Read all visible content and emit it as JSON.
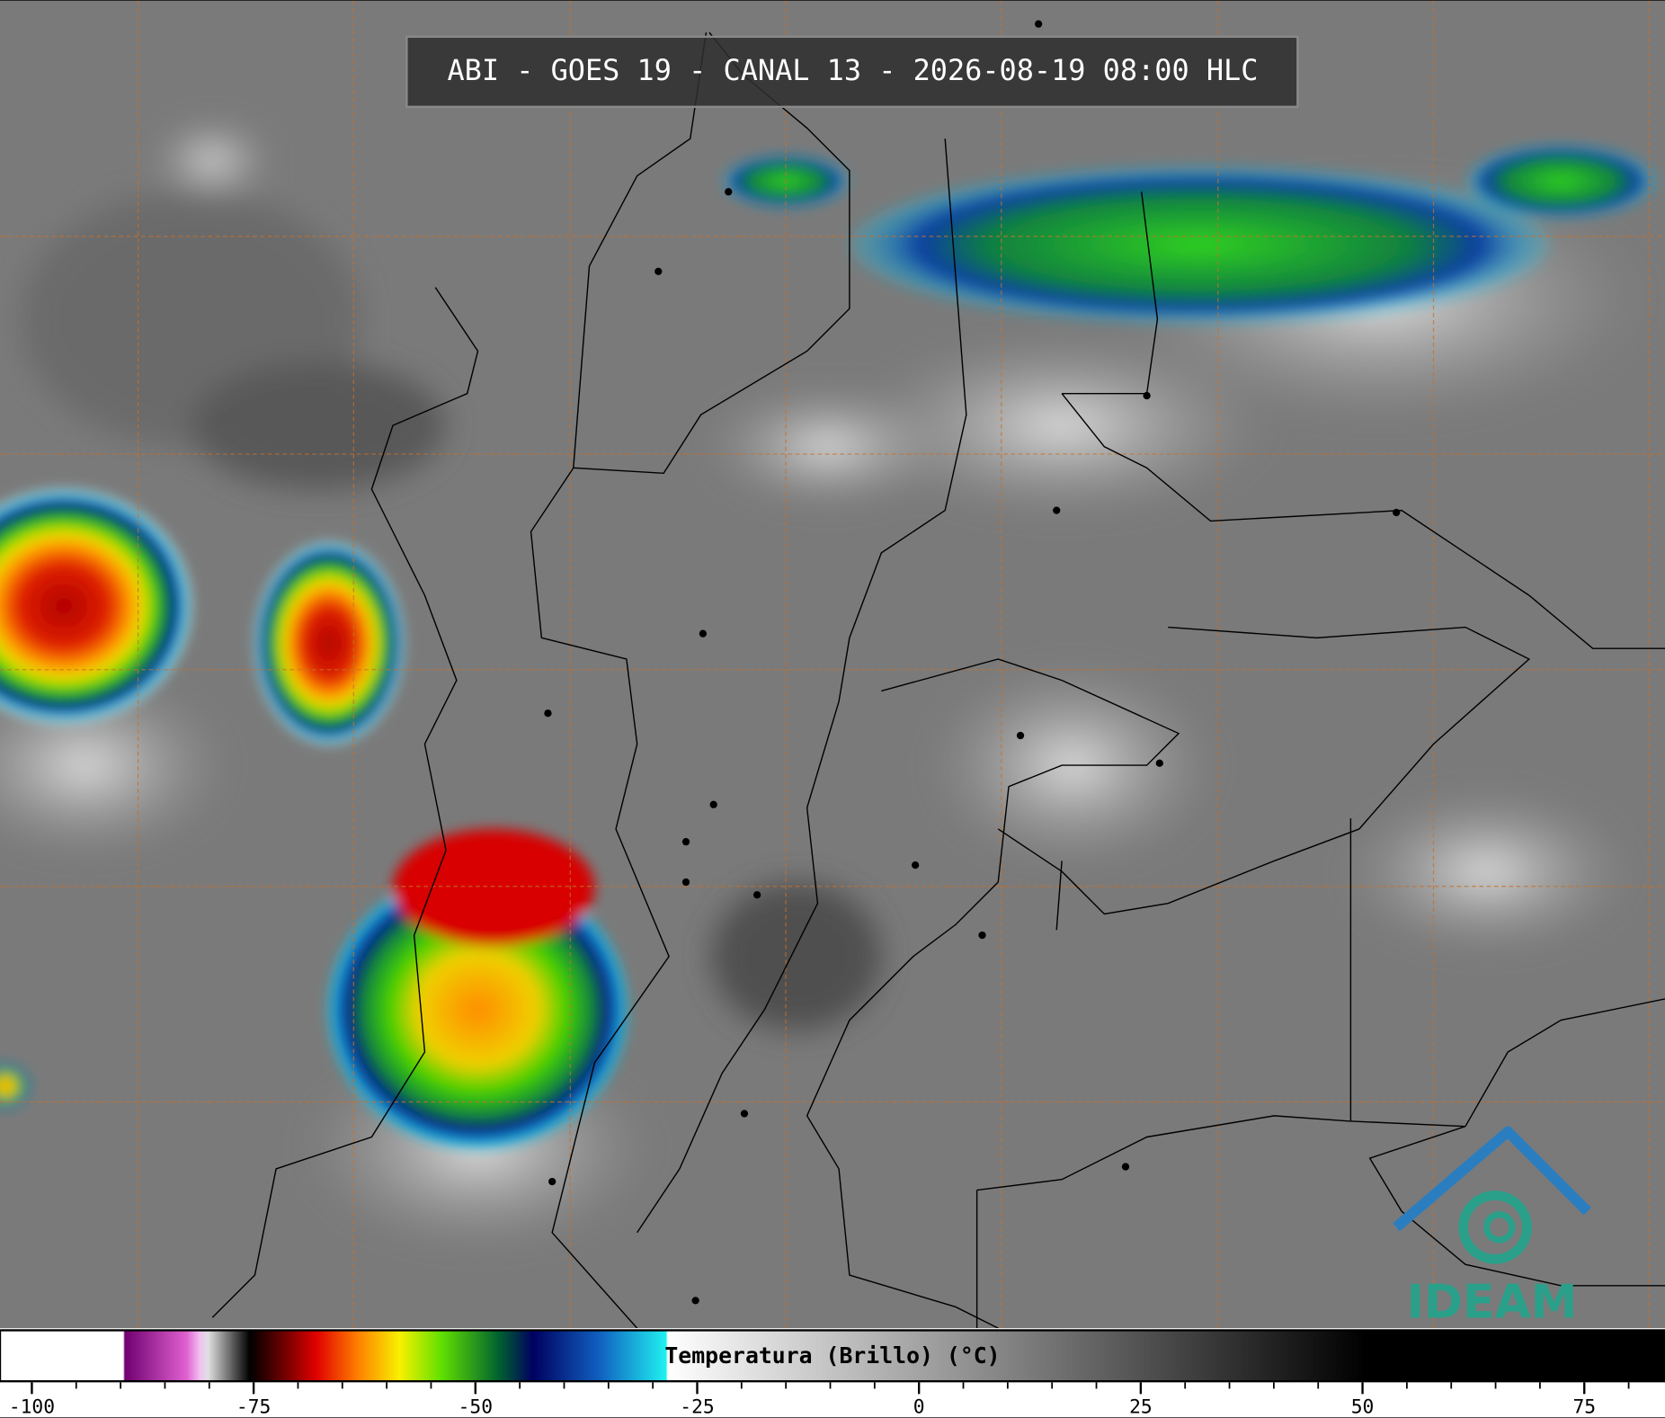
{
  "header": {
    "title": "ABI - GOES 19 - CANAL 13 - 2026-08-19 08:00 HLC"
  },
  "colorbar": {
    "label": "Temperatura (Brillo) (°C)",
    "ticks": [
      -100,
      -75,
      -50,
      -25,
      0,
      25,
      50,
      75
    ]
  },
  "logo": {
    "text": "IDEAM"
  }
}
